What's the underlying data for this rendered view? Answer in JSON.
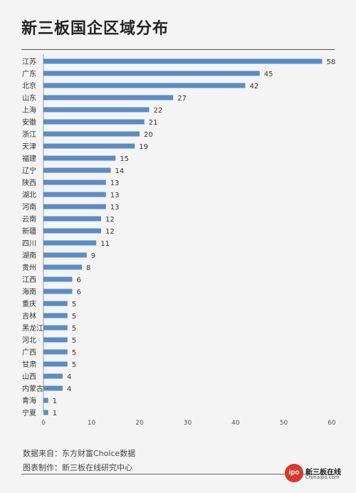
{
  "page": {
    "title": "新三板国企区域分布"
  },
  "footer": {
    "source": "数据来自：东方财富Choice数据",
    "made_by": "图表制作：新三板在线研究中心"
  },
  "logo": {
    "mark": "ipo",
    "name": "新三板在线",
    "url": "Chinaipo.com"
  },
  "colors": {
    "bar": "#5b8cc3",
    "axis": "#999999",
    "background": "#f4f4f4"
  },
  "chart_data": {
    "type": "bar",
    "orientation": "horizontal",
    "title": "新三板国企区域分布",
    "xlabel": "",
    "ylabel": "",
    "xlim": [
      0,
      60
    ],
    "xticks": [
      0,
      10,
      20,
      30,
      40,
      50,
      60
    ],
    "grid": false,
    "categories": [
      "江苏",
      "广东",
      "北京",
      "山东",
      "上海",
      "安徽",
      "浙江",
      "天津",
      "福建",
      "辽宁",
      "陕西",
      "湖北",
      "河南",
      "云南",
      "新疆",
      "四川",
      "湖南",
      "贵州",
      "江西",
      "海南",
      "重庆",
      "吉林",
      "黑龙江",
      "河北",
      "广西",
      "甘肃",
      "山西",
      "内蒙古",
      "青海",
      "宁夏"
    ],
    "values": [
      58,
      45,
      42,
      27,
      22,
      21,
      20,
      19,
      15,
      14,
      13,
      13,
      13,
      12,
      12,
      11,
      9,
      8,
      6,
      6,
      5,
      5,
      5,
      5,
      5,
      5,
      4,
      4,
      1,
      1
    ]
  }
}
